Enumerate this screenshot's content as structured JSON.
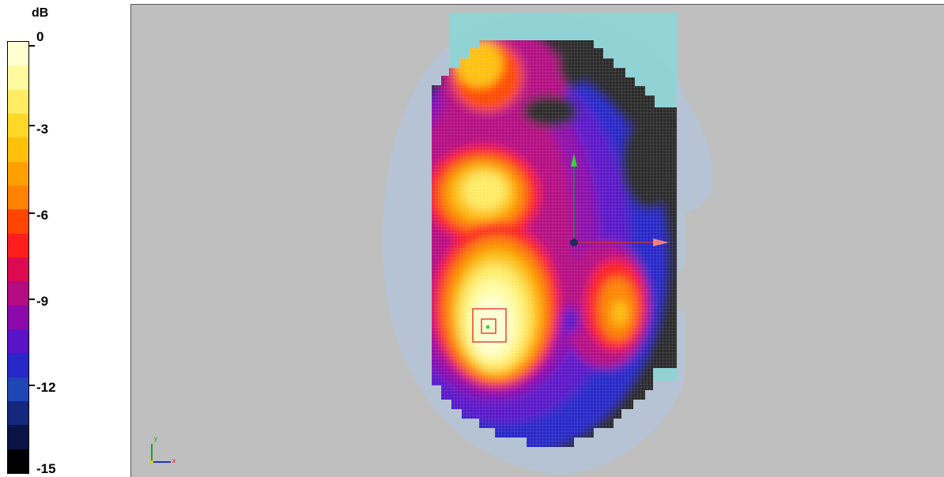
{
  "legend": {
    "unit": "dB",
    "ticks": [
      "0",
      "-3",
      "-6",
      "-9",
      "-12",
      "-15"
    ],
    "colors": [
      "#ffffd2",
      "#fffaa0",
      "#ffeb64",
      "#ffd828",
      "#ffc00a",
      "#ffa000",
      "#ff8200",
      "#ff4600",
      "#ff1e1e",
      "#dc0a50",
      "#b40a82",
      "#8c0aaa",
      "#5a14c8",
      "#2828c8",
      "#1e46b4",
      "#14287d",
      "#0a1446",
      "#000000"
    ]
  },
  "viewport": {
    "axis_triad": {
      "x_label": "x",
      "y_label": "y"
    },
    "colors": {
      "background": "#bfbfbf",
      "phantom": "#b4c3d7",
      "antenna": "#8fd4d4",
      "marker": "#e01818"
    }
  }
}
